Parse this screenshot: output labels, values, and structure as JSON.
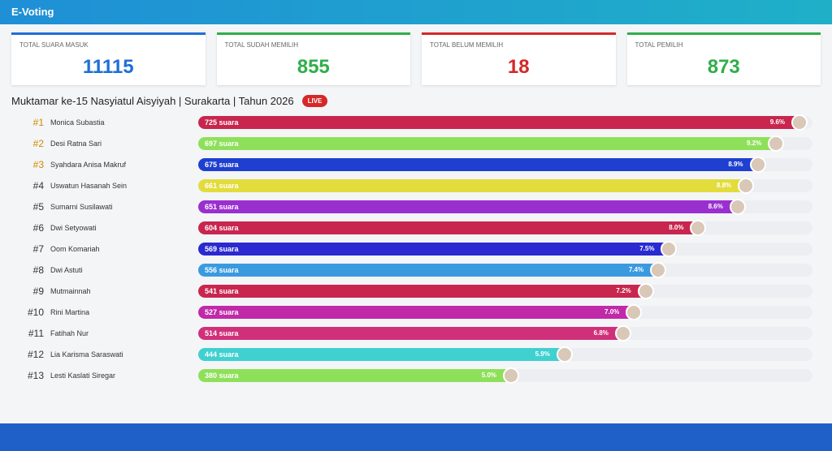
{
  "header": {
    "app_name": "E-Voting"
  },
  "stats": [
    {
      "label": "Total Suara Masuk",
      "value": 11115,
      "color": "#1f6fd6"
    },
    {
      "label": "Total Sudah Memilih",
      "value": 855,
      "color": "#2fae4a"
    },
    {
      "label": "Total Belum Memilih",
      "value": 18,
      "color": "#d62828"
    },
    {
      "label": "Total Pemilih",
      "value": 873,
      "color": "#2fae4a"
    }
  ],
  "event_title": "Muktamar ke-15 Nasyiatul Aisyiyah | Surakarta | Tahun 2026",
  "live_badge": "LIVE",
  "candidates": [
    {
      "rank": "#1",
      "name": "Monica Subastia",
      "votes": 725,
      "votes_label": "725 suara",
      "percent": "9.6%",
      "color": "#c8264f"
    },
    {
      "rank": "#2",
      "name": "Desi Ratna Sari",
      "votes": 697,
      "votes_label": "697 suara",
      "percent": "9.2%",
      "color": "#8ee05a"
    },
    {
      "rank": "#3",
      "name": "Syahdara Anisa Makruf",
      "votes": 675,
      "votes_label": "675 suara",
      "percent": "8.9%",
      "color": "#1e3fd0"
    },
    {
      "rank": "#4",
      "name": "Uswatun Hasanah Sein",
      "votes": 661,
      "votes_label": "661 suara",
      "percent": "8.8%",
      "color": "#e2dc3c"
    },
    {
      "rank": "#5",
      "name": "Sumarni Susilawati",
      "votes": 651,
      "votes_label": "651 suara",
      "percent": "8.6%",
      "color": "#9a2fd0"
    },
    {
      "rank": "#6",
      "name": "Dwi Setyowati",
      "votes": 604,
      "votes_label": "604 suara",
      "percent": "8.0%",
      "color": "#c8264f"
    },
    {
      "rank": "#7",
      "name": "Oom Komariah",
      "votes": 569,
      "votes_label": "569 suara",
      "percent": "7.5%",
      "color": "#2a2ad0"
    },
    {
      "rank": "#8",
      "name": "Dwi Astuti",
      "votes": 556,
      "votes_label": "556 suara",
      "percent": "7.4%",
      "color": "#3a9ae0"
    },
    {
      "rank": "#9",
      "name": "Mutmainnah",
      "votes": 541,
      "votes_label": "541 suara",
      "percent": "7.2%",
      "color": "#c8264f"
    },
    {
      "rank": "#10",
      "name": "Rini Martina",
      "votes": 527,
      "votes_label": "527 suara",
      "percent": "7.0%",
      "color": "#c02aa8"
    },
    {
      "rank": "#11",
      "name": "Fatihah Nur",
      "votes": 514,
      "votes_label": "514 suara",
      "percent": "6.8%",
      "color": "#d0307a"
    },
    {
      "rank": "#12",
      "name": "Lia Karisma Saraswati",
      "votes": 444,
      "votes_label": "444 suara",
      "percent": "5.9%",
      "color": "#40d0d0"
    },
    {
      "rank": "#13",
      "name": "Lesti Kaslati Siregar",
      "votes": 380,
      "votes_label": "380 suara",
      "percent": "5.0%",
      "color": "#8ee05a"
    }
  ]
}
